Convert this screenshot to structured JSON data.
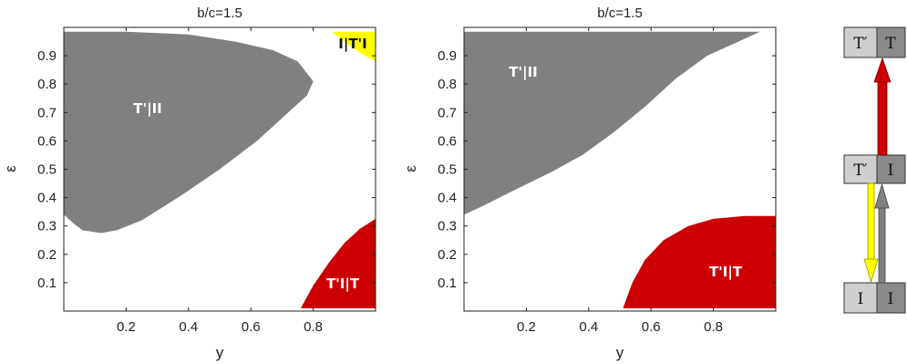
{
  "chart_data": [
    {
      "type": "area",
      "title": "b/c=1.5",
      "xlabel": "y",
      "ylabel": "ε",
      "xlim": [
        0,
        1
      ],
      "ylim": [
        0,
        1
      ],
      "xticks": [
        "0.2",
        "0.4",
        "0.6",
        "0.8"
      ],
      "yticks": [
        "0.1",
        "0.2",
        "0.3",
        "0.4",
        "0.5",
        "0.6",
        "0.7",
        "0.8",
        "0.9"
      ],
      "grid": false,
      "regions": [
        {
          "label": "T'|II",
          "color": "#808080",
          "points": [
            [
              0,
              0.985
            ],
            [
              0.2,
              0.985
            ],
            [
              0.4,
              0.975
            ],
            [
              0.55,
              0.95
            ],
            [
              0.67,
              0.92
            ],
            [
              0.75,
              0.88
            ],
            [
              0.8,
              0.81
            ],
            [
              0.78,
              0.76
            ],
            [
              0.72,
              0.7
            ],
            [
              0.62,
              0.6
            ],
            [
              0.5,
              0.5
            ],
            [
              0.38,
              0.41
            ],
            [
              0.25,
              0.32
            ],
            [
              0.17,
              0.285
            ],
            [
              0.12,
              0.275
            ],
            [
              0.06,
              0.285
            ],
            [
              0.03,
              0.31
            ],
            [
              0,
              0.34
            ]
          ]
        },
        {
          "label": "I|T'I",
          "color": "#ffff00",
          "points": [
            [
              0.86,
              0.985
            ],
            [
              1,
              0.985
            ],
            [
              1,
              0.88
            ],
            [
              0.95,
              0.91
            ],
            [
              0.9,
              0.95
            ]
          ]
        },
        {
          "label": "T'I|T",
          "color": "#cc0000",
          "points": [
            [
              0.76,
              0.01
            ],
            [
              1,
              0.01
            ],
            [
              1,
              0.325
            ],
            [
              0.95,
              0.29
            ],
            [
              0.9,
              0.24
            ],
            [
              0.85,
              0.17
            ],
            [
              0.8,
              0.09
            ]
          ]
        }
      ]
    },
    {
      "type": "area",
      "title": "b/c=1.5",
      "xlabel": "y",
      "ylabel": "ε",
      "xlim": [
        0,
        1
      ],
      "ylim": [
        0,
        1
      ],
      "xticks": [
        "0.2",
        "0.4",
        "0.6",
        "0.8"
      ],
      "yticks": [
        "0.1",
        "0.2",
        "0.3",
        "0.4",
        "0.5",
        "0.6",
        "0.7",
        "0.8",
        "0.9"
      ],
      "grid": false,
      "regions": [
        {
          "label": "T'|II",
          "color": "#808080",
          "points": [
            [
              0,
              0.985
            ],
            [
              0.95,
              0.985
            ],
            [
              0.88,
              0.95
            ],
            [
              0.78,
              0.9
            ],
            [
              0.68,
              0.82
            ],
            [
              0.58,
              0.72
            ],
            [
              0.48,
              0.63
            ],
            [
              0.38,
              0.55
            ],
            [
              0.28,
              0.49
            ],
            [
              0.15,
              0.42
            ],
            [
              0.06,
              0.37
            ],
            [
              0,
              0.34
            ]
          ]
        },
        {
          "label": "T'I|T",
          "color": "#cc0000",
          "points": [
            [
              0.51,
              0.01
            ],
            [
              1,
              0.01
            ],
            [
              1,
              0.335
            ],
            [
              0.9,
              0.335
            ],
            [
              0.8,
              0.325
            ],
            [
              0.72,
              0.3
            ],
            [
              0.64,
              0.25
            ],
            [
              0.58,
              0.18
            ],
            [
              0.54,
              0.1
            ]
          ]
        }
      ]
    }
  ],
  "titles": [
    "b/c=1.5",
    "b/c=1.5"
  ],
  "axis_labels": {
    "x": "y",
    "y": "ε"
  },
  "xticks": [
    "0.2",
    "0.4",
    "0.6",
    "0.8"
  ],
  "yticks": [
    "0.1",
    "0.2",
    "0.3",
    "0.4",
    "0.5",
    "0.6",
    "0.7",
    "0.8",
    "0.9"
  ],
  "panel1_labels": {
    "gray": "T'|II",
    "yellow": "I|T'I",
    "red": "T'I|T"
  },
  "panel2_labels": {
    "gray": "T'|II",
    "red": "T'I|T"
  },
  "diagram": {
    "top": {
      "left": "T′",
      "right": "T"
    },
    "middle": {
      "left": "T′",
      "right": "I"
    },
    "bottom": {
      "left": "I",
      "right": "I"
    },
    "colors": {
      "light_box": "#cfcfcf",
      "dark_box": "#8a8a8a",
      "red_arrow": "#cc0000",
      "gray_arrow": "#808080",
      "yellow_arrow": "#ffff00"
    }
  }
}
